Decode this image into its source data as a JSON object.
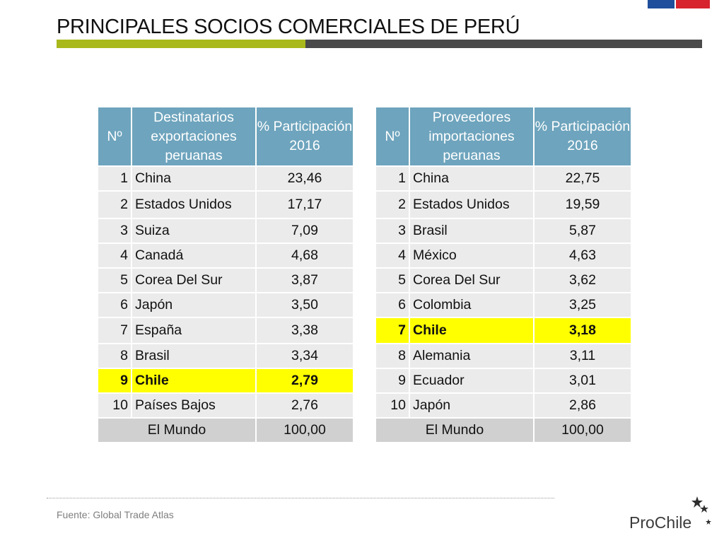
{
  "title": "PRINCIPALES SOCIOS COMERCIALES DE PERÚ",
  "exports": {
    "headers": [
      "Nº",
      "Destinatarios exportaciones peruanas",
      "% Participación 2016"
    ],
    "rows": [
      {
        "n": "1",
        "name": "China",
        "value": "23,46"
      },
      {
        "n": "2",
        "name": "Estados Unidos",
        "value": "17,17"
      },
      {
        "n": "3",
        "name": "Suiza",
        "value": "7,09"
      },
      {
        "n": "4",
        "name": "Canadá",
        "value": "4,68"
      },
      {
        "n": "5",
        "name": "Corea Del Sur",
        "value": "3,87"
      },
      {
        "n": "6",
        "name": "Japón",
        "value": "3,50"
      },
      {
        "n": "7",
        "name": "España",
        "value": "3,38"
      },
      {
        "n": "8",
        "name": "Brasil",
        "value": "3,34"
      },
      {
        "n": "9",
        "name": "Chile",
        "value": "2,79"
      },
      {
        "n": "10",
        "name": "Países Bajos",
        "value": "2,76"
      }
    ],
    "total_label": "El Mundo",
    "total_value": "100,00"
  },
  "imports": {
    "headers": [
      "Nº",
      "Proveedores importaciones peruanas",
      "% Participación 2016"
    ],
    "rows": [
      {
        "n": "1",
        "name": "China",
        "value": "22,75"
      },
      {
        "n": "2",
        "name": "Estados Unidos",
        "value": "19,59"
      },
      {
        "n": "3",
        "name": "Brasil",
        "value": "5,87"
      },
      {
        "n": "4",
        "name": "México",
        "value": "4,63"
      },
      {
        "n": "5",
        "name": "Corea Del Sur",
        "value": "3,62"
      },
      {
        "n": "6",
        "name": "Colombia",
        "value": "3,25"
      },
      {
        "n": "7",
        "name": "Chile",
        "value": "3,18"
      },
      {
        "n": "8",
        "name": "Alemania",
        "value": "3,11"
      },
      {
        "n": "9",
        "name": "Ecuador",
        "value": "3,01"
      },
      {
        "n": "10",
        "name": "Japón",
        "value": "2,86"
      }
    ],
    "total_label": "El Mundo",
    "total_value": "100,00"
  },
  "source": "Fuente: Global Trade Atlas",
  "logo_text": "ProChile",
  "colors": {
    "header": "#6ea4bd",
    "highlight": "#ffff00",
    "row": "#ebebeb",
    "total": "#d0d0d0",
    "accent_green": "#a9b91c",
    "accent_dark": "#4a4a4a"
  }
}
